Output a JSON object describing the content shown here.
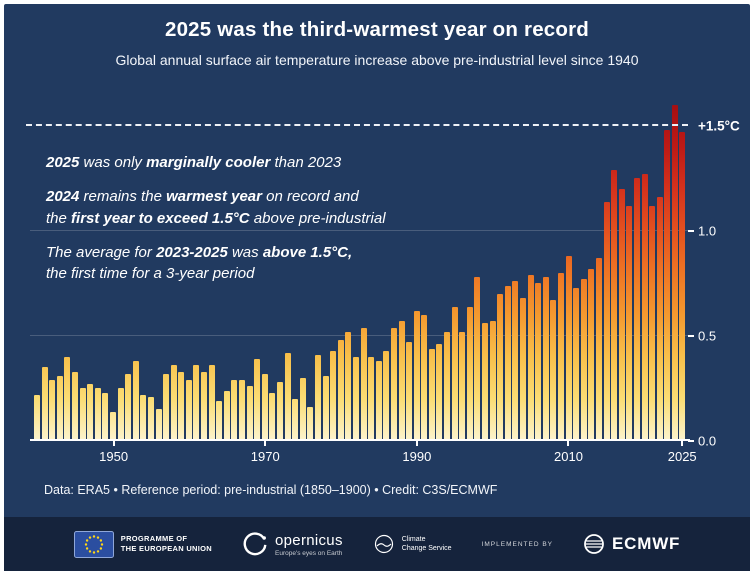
{
  "title": "2025 was the third-warmest year on record",
  "subtitle": "Global annual surface air temperature increase above pre-industrial level since 1940",
  "footer_note": "Data: ERA5 • Reference period: pre-industrial (1850–1900) • Credit: C3S/ECMWF",
  "colors": {
    "panel_background": "#213a60",
    "strip_background": "#15233c",
    "text": "#ffffff",
    "threshold_line": "#eef1f6",
    "bar_gradient": [
      "#fcf4cf",
      "#fbdd74",
      "#f8c04b",
      "#f4992f",
      "#ee7524",
      "#e4511f",
      "#d4321d",
      "#bd1a16",
      "#a50f12"
    ]
  },
  "annotations": {
    "paragraphs": [
      {
        "lines": [
          [
            {
              "t": "2025",
              "b": true
            },
            {
              "t": " was only ",
              "b": false
            },
            {
              "t": "marginally cooler",
              "b": true
            },
            {
              "t": " than 2023",
              "b": false
            }
          ]
        ]
      },
      {
        "lines": [
          [
            {
              "t": "2024",
              "b": true
            },
            {
              "t": " remains the ",
              "b": false
            },
            {
              "t": "warmest year",
              "b": true
            },
            {
              "t": " on record and",
              "b": false
            }
          ],
          [
            {
              "t": "the ",
              "b": false
            },
            {
              "t": "first year to exceed 1.5°C",
              "b": true
            },
            {
              "t": " above pre-industrial",
              "b": false
            }
          ]
        ]
      },
      {
        "lines": [
          [
            {
              "t": "The average for ",
              "b": false
            },
            {
              "t": "2023-2025",
              "b": true
            },
            {
              "t": " was ",
              "b": false
            },
            {
              "t": "above 1.5°C,",
              "b": true
            }
          ],
          [
            {
              "t": "the first time for a 3-year period",
              "b": false
            }
          ]
        ]
      }
    ]
  },
  "chart_data": {
    "type": "bar",
    "title": "Global annual surface air temperature increase above pre-industrial level since 1940",
    "unit": "°C",
    "x_start": 1940,
    "x_end": 2025,
    "ylim": [
      0,
      1.64
    ],
    "grid": "horizontal-faint",
    "values": [
      0.22,
      0.35,
      0.29,
      0.31,
      0.4,
      0.33,
      0.25,
      0.27,
      0.25,
      0.23,
      0.14,
      0.25,
      0.32,
      0.38,
      0.22,
      0.21,
      0.15,
      0.32,
      0.36,
      0.33,
      0.29,
      0.36,
      0.33,
      0.36,
      0.19,
      0.24,
      0.29,
      0.29,
      0.26,
      0.39,
      0.32,
      0.23,
      0.28,
      0.42,
      0.2,
      0.3,
      0.16,
      0.41,
      0.31,
      0.43,
      0.48,
      0.52,
      0.4,
      0.54,
      0.4,
      0.38,
      0.43,
      0.54,
      0.57,
      0.47,
      0.62,
      0.6,
      0.44,
      0.46,
      0.52,
      0.64,
      0.52,
      0.64,
      0.78,
      0.56,
      0.57,
      0.7,
      0.74,
      0.76,
      0.68,
      0.79,
      0.75,
      0.78,
      0.67,
      0.8,
      0.88,
      0.73,
      0.77,
      0.82,
      0.87,
      1.14,
      1.29,
      1.2,
      1.12,
      1.25,
      1.27,
      1.12,
      1.16,
      1.48,
      1.6,
      1.47
    ],
    "y_ticks": [
      {
        "value": 0.0,
        "label": "0.0"
      },
      {
        "value": 0.5,
        "label": "0.5"
      },
      {
        "value": 1.0,
        "label": "1.0"
      },
      {
        "value": 1.5,
        "label": "+1.5°C"
      }
    ],
    "threshold": {
      "value": 1.5,
      "label": "+1.5°C"
    },
    "x_tick_years": [
      1950,
      1970,
      1990,
      2010,
      2025
    ]
  },
  "logos": {
    "eu": {
      "line1": "PROGRAMME OF",
      "line2": "THE EUROPEAN UNION"
    },
    "copernicus": {
      "name": "opernicus",
      "tagline": "Europe's eyes on Earth"
    },
    "climate": {
      "line1": "Climate",
      "line2": "Change Service"
    },
    "implemented_by": "IMPLEMENTED BY",
    "ecmwf": "ECMWF"
  }
}
